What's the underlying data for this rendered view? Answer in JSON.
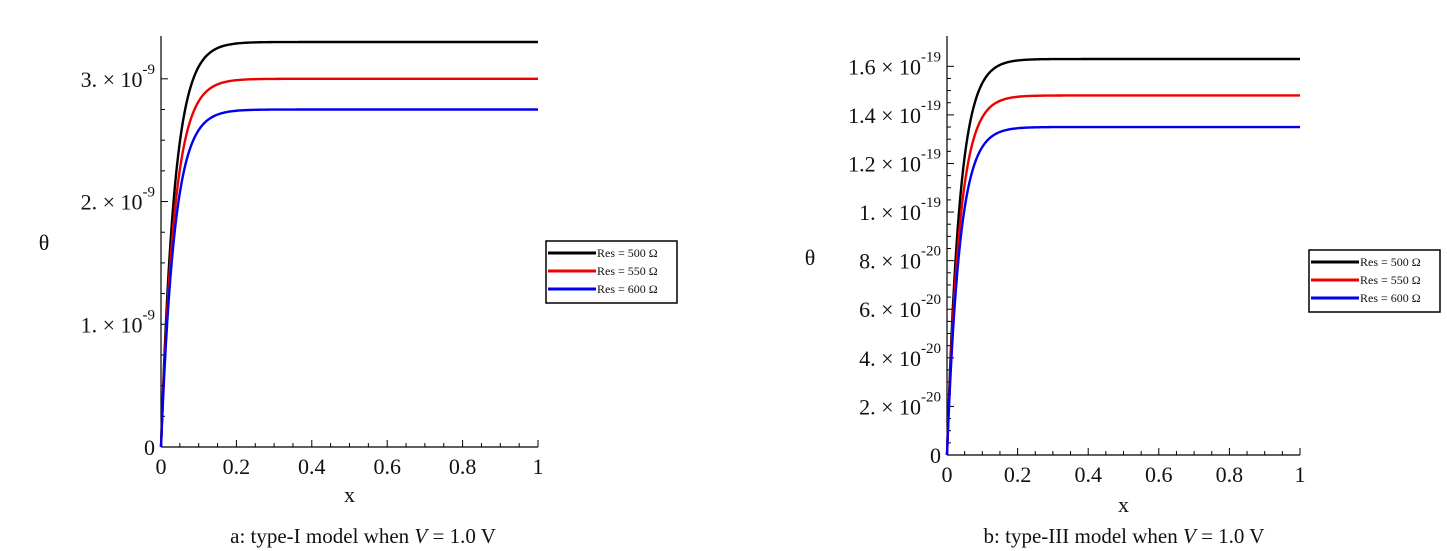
{
  "chart_data": [
    {
      "type": "line",
      "caption": "a: type-I model when V = 1.0 V",
      "caption_parts": [
        "a: type-I model when ",
        "V",
        " = 1.0 V"
      ],
      "xlabel": "x",
      "ylabel": "θ",
      "xlim": [
        0,
        1
      ],
      "ylim": [
        0,
        3.3e-09
      ],
      "x_ticks": [
        0,
        0.2,
        0.4,
        0.6,
        0.8,
        1
      ],
      "x_tick_labels": [
        "0",
        "0.2",
        "0.4",
        "0.6",
        "0.8",
        "1"
      ],
      "y_ticks": [
        0,
        1e-09,
        2e-09,
        3e-09
      ],
      "y_tick_labels": [
        {
          "mant": "0",
          "exp": ""
        },
        {
          "mant": "1. × 10",
          "exp": "-9"
        },
        {
          "mant": "2. × 10",
          "exp": "-9"
        },
        {
          "mant": "3. × 10",
          "exp": "-9"
        }
      ],
      "growth_rate": 28,
      "grid": false,
      "legend_position": "right",
      "series": [
        {
          "name": "Res = 500 Ω",
          "color": "#000000",
          "plateau": 3.3e-09
        },
        {
          "name": "Res = 550 Ω",
          "color": "#ee0000",
          "plateau": 3e-09
        },
        {
          "name": "Res = 600 Ω",
          "color": "#0000ee",
          "plateau": 2.75e-09
        }
      ]
    },
    {
      "type": "line",
      "caption": "b: type-III model when V = 1.0 V",
      "caption_parts": [
        "b: type-III model when ",
        "V",
        " = 1.0 V"
      ],
      "xlabel": "x",
      "ylabel": "θ",
      "xlim": [
        0,
        1
      ],
      "ylim": [
        0,
        1.7e-19
      ],
      "x_ticks": [
        0,
        0.2,
        0.4,
        0.6,
        0.8,
        1
      ],
      "x_tick_labels": [
        "0",
        "0.2",
        "0.4",
        "0.6",
        "0.8",
        "1"
      ],
      "y_ticks": [
        0,
        2e-20,
        4e-20,
        6e-20,
        8e-20,
        1e-19,
        1.2e-19,
        1.4e-19,
        1.6e-19
      ],
      "y_tick_labels": [
        {
          "mant": "0",
          "exp": ""
        },
        {
          "mant": "2. × 10",
          "exp": "-20"
        },
        {
          "mant": "4. × 10",
          "exp": "-20"
        },
        {
          "mant": "6. × 10",
          "exp": "-20"
        },
        {
          "mant": "8. × 10",
          "exp": "-20"
        },
        {
          "mant": "1. × 10",
          "exp": "-19"
        },
        {
          "mant": "1.2 × 10",
          "exp": "-19"
        },
        {
          "mant": "1.4 × 10",
          "exp": "-19"
        },
        {
          "mant": "1.6 × 10",
          "exp": "-19"
        }
      ],
      "growth_rate": 28,
      "grid": false,
      "legend_position": "right",
      "series": [
        {
          "name": "Res = 500 Ω",
          "color": "#000000",
          "plateau": 1.63e-19
        },
        {
          "name": "Res = 550 Ω",
          "color": "#ee0000",
          "plateau": 1.48e-19
        },
        {
          "name": "Res = 600 Ω",
          "color": "#0000ee",
          "plateau": 1.35e-19
        }
      ]
    }
  ]
}
